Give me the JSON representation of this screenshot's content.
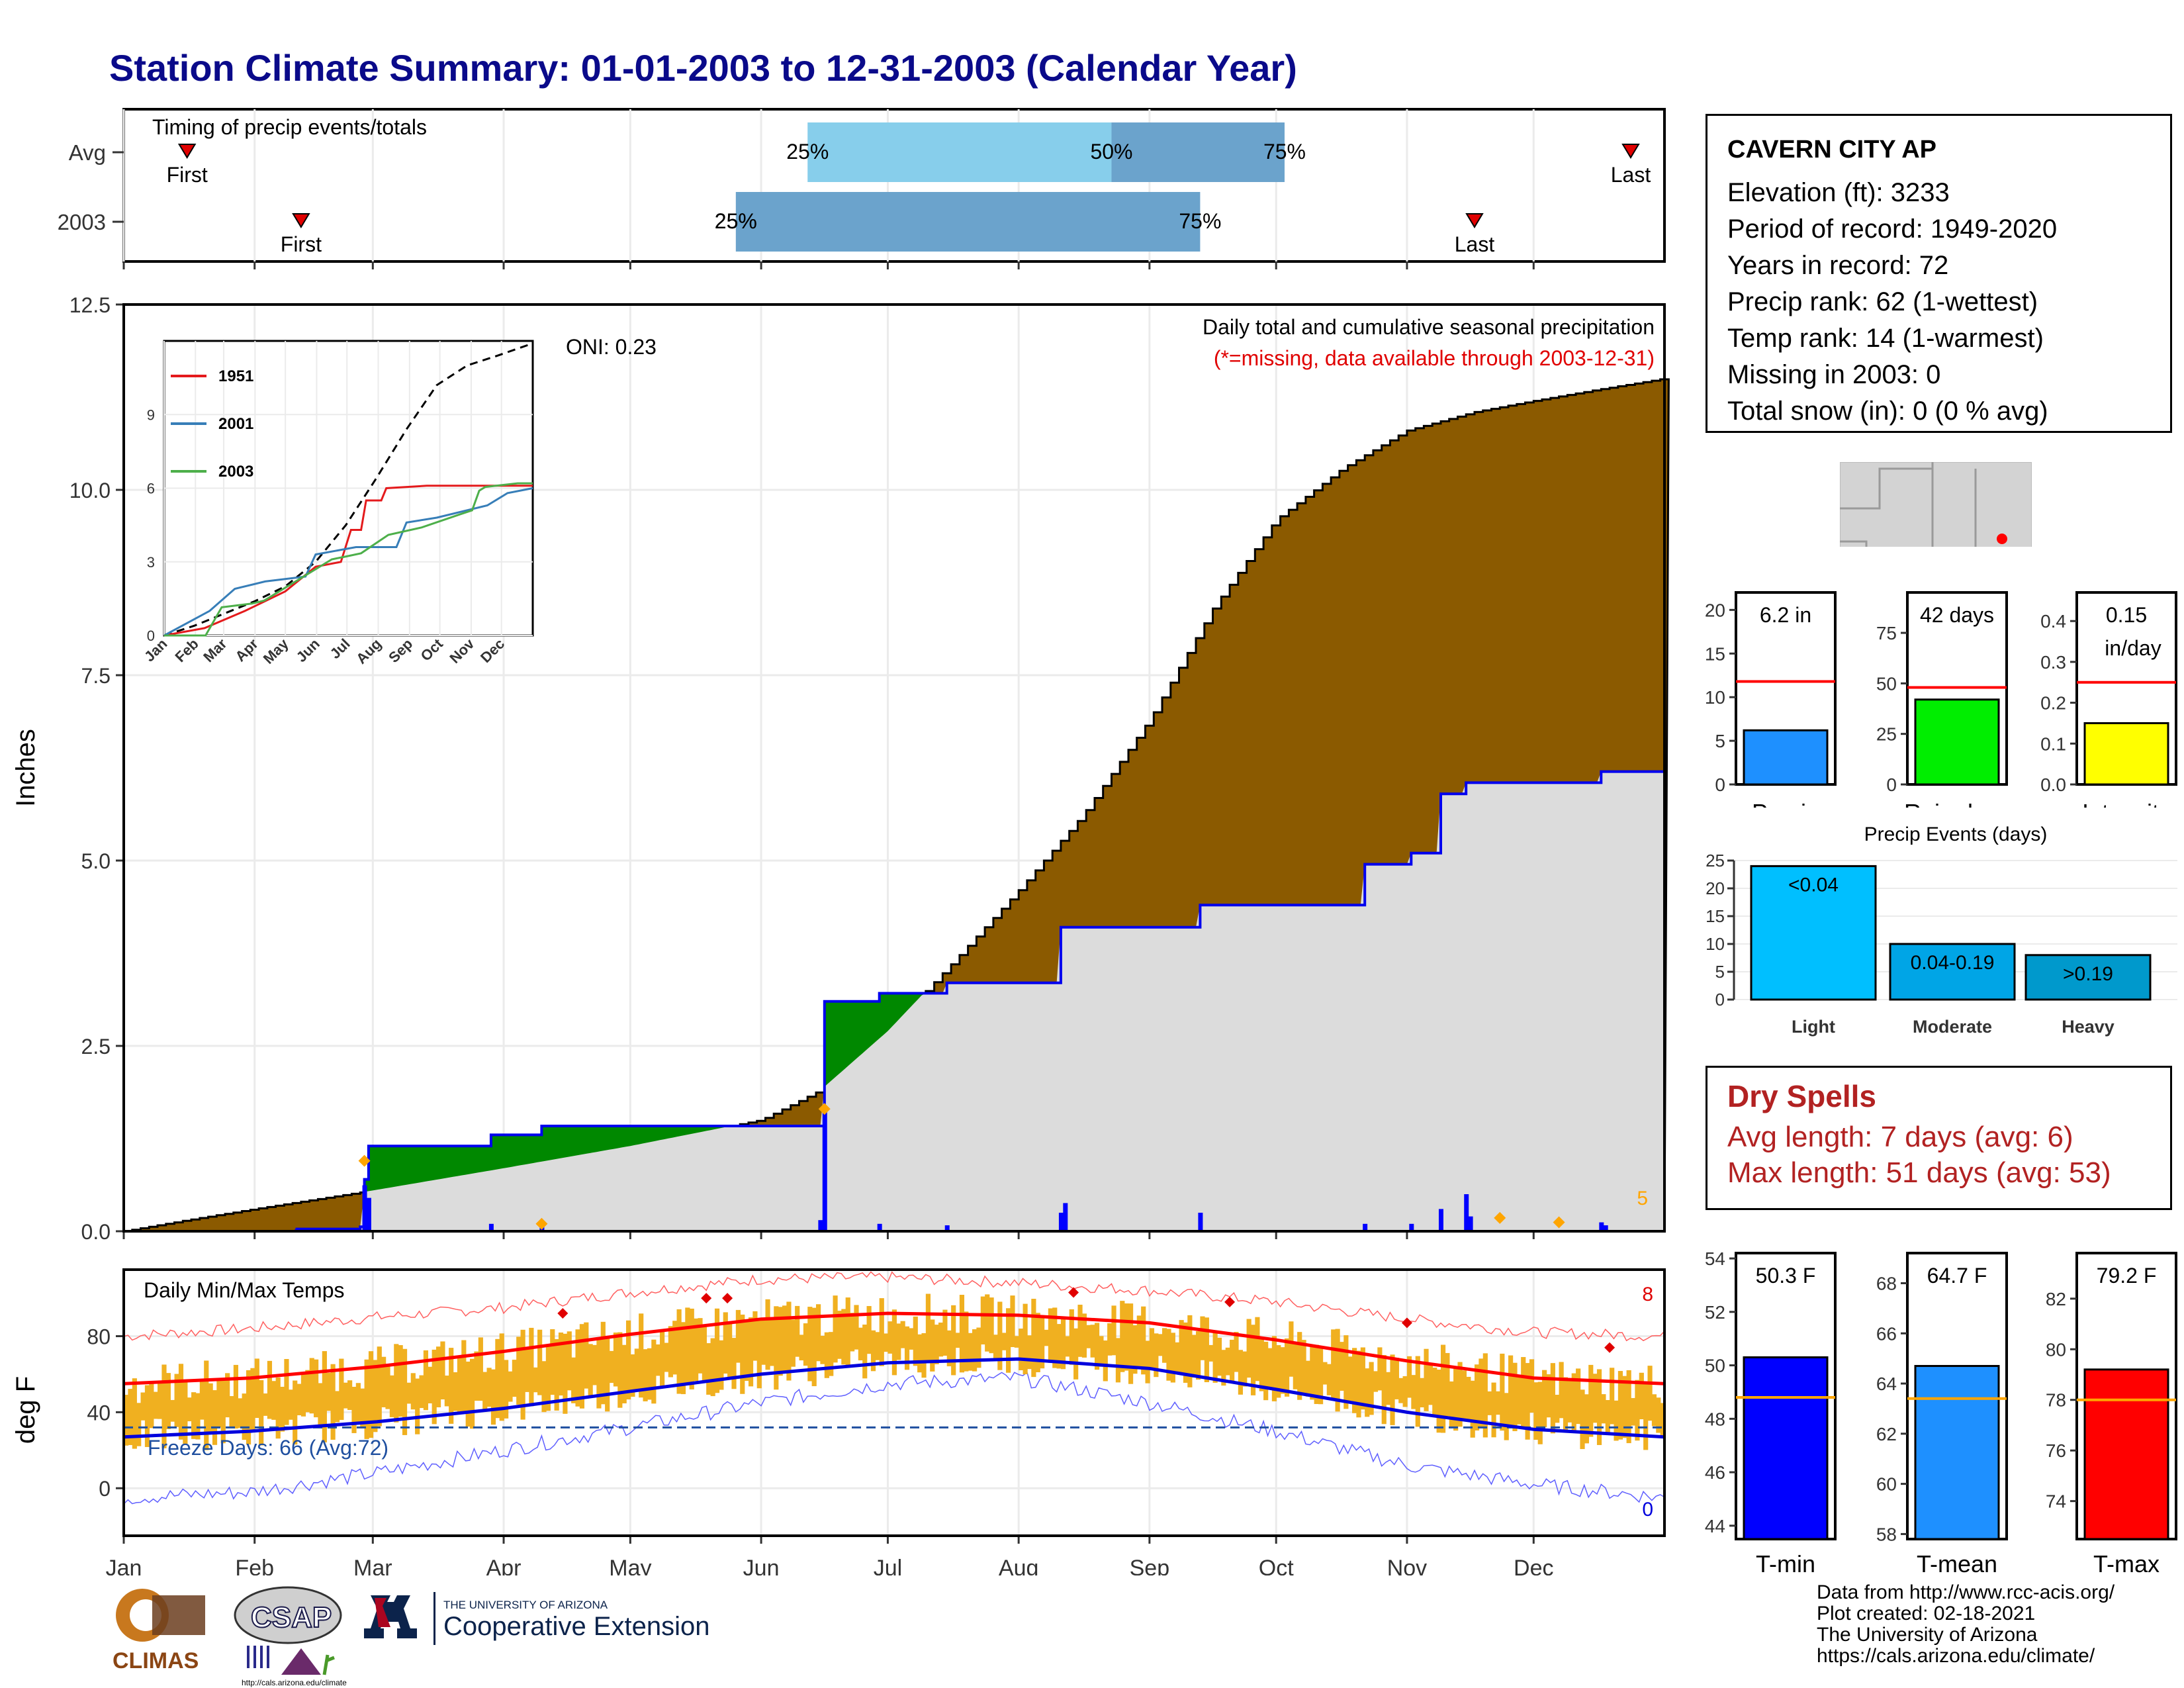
{
  "title": "Station Climate Summary: 01-01-2003 to 12-31-2003 (Calendar Year)",
  "station": {
    "name": "CAVERN CITY AP",
    "lines": [
      "Elevation (ft): 3233",
      "Period of record: 1949-2020",
      "Years in record: 72",
      "Precip rank: 62 (1-wettest)",
      "Temp rank: 14 (1-warmest)",
      "Missing in 2003: 0",
      "Total snow (in): 0 (0 % avg)"
    ]
  },
  "timing": {
    "title": "Timing of precip events/totals",
    "rows": [
      "Avg",
      "2003"
    ],
    "avg": {
      "first_doy": 15,
      "last_doy": 357,
      "p25_doy": 162,
      "p50_doy": 234,
      "p75_doy": 275
    },
    "y2003": {
      "first_doy": 42,
      "last_doy": 320,
      "p25_doy": 145,
      "p50_doy": 145,
      "p75_doy": 255
    },
    "first_label": "First",
    "last_label": "Last",
    "p25_label": "25%",
    "p50_label": "50%",
    "p75_label": "75%",
    "overlap_label": "25%"
  },
  "precip": {
    "ylabel": "Inches",
    "yticks": [
      "0.0",
      "2.5",
      "5.0",
      "7.5",
      "10.0",
      "12.5"
    ],
    "ylim": [
      0,
      12.5
    ],
    "legend_title": "Daily total and cumulative seasonal precipitation",
    "missing_note": "(*=missing, data available through 2003-12-31)",
    "oni": "ONI: 0.23",
    "count_label": "5",
    "avg_cumulative": [
      [
        0,
        0
      ],
      [
        15,
        0.15
      ],
      [
        31,
        0.3
      ],
      [
        59,
        0.55
      ],
      [
        90,
        0.85
      ],
      [
        120,
        1.15
      ],
      [
        151,
        1.5
      ],
      [
        165,
        1.9
      ],
      [
        181,
        2.7
      ],
      [
        196,
        3.6
      ],
      [
        212,
        4.6
      ],
      [
        227,
        5.6
      ],
      [
        243,
        6.9
      ],
      [
        258,
        8.4
      ],
      [
        273,
        9.6
      ],
      [
        289,
        10.3
      ],
      [
        304,
        10.8
      ],
      [
        320,
        11.05
      ],
      [
        334,
        11.2
      ],
      [
        349,
        11.35
      ],
      [
        365,
        11.5
      ]
    ],
    "cum_2003": [
      [
        0,
        0
      ],
      [
        41,
        0
      ],
      [
        41,
        0.03
      ],
      [
        56,
        0.03
      ],
      [
        56,
        0.06
      ],
      [
        57,
        0.06
      ],
      [
        57,
        0.7
      ],
      [
        58,
        0.7
      ],
      [
        58,
        1.15
      ],
      [
        87,
        1.15
      ],
      [
        87,
        1.3
      ],
      [
        99,
        1.3
      ],
      [
        99,
        1.42
      ],
      [
        166,
        1.42
      ],
      [
        166,
        3.1
      ],
      [
        179,
        3.1
      ],
      [
        179,
        3.21
      ],
      [
        195,
        3.21
      ],
      [
        195,
        3.35
      ],
      [
        222,
        3.35
      ],
      [
        222,
        4.1
      ],
      [
        255,
        4.1
      ],
      [
        255,
        4.4
      ],
      [
        294,
        4.4
      ],
      [
        294,
        4.95
      ],
      [
        305,
        4.95
      ],
      [
        305,
        5.1
      ],
      [
        312,
        5.1
      ],
      [
        312,
        5.9
      ],
      [
        318,
        5.9
      ],
      [
        318,
        6.05
      ],
      [
        350,
        6.05
      ],
      [
        350,
        6.2
      ],
      [
        365,
        6.2
      ]
    ],
    "daily_bars": [
      [
        41,
        0.03
      ],
      [
        57,
        0.62
      ],
      [
        58,
        0.45
      ],
      [
        87,
        0.1
      ],
      [
        99,
        0.1
      ],
      [
        165,
        0.15
      ],
      [
        166,
        1.68
      ],
      [
        179,
        0.1
      ],
      [
        195,
        0.08
      ],
      [
        222,
        0.25
      ],
      [
        223,
        0.38
      ],
      [
        255,
        0.25
      ],
      [
        294,
        0.1
      ],
      [
        305,
        0.1
      ],
      [
        312,
        0.3
      ],
      [
        318,
        0.5
      ],
      [
        319,
        0.2
      ],
      [
        350,
        0.12
      ],
      [
        351,
        0.08
      ]
    ],
    "extreme_markers": [
      [
        57,
        0.95
      ],
      [
        99,
        0.1
      ],
      [
        166,
        1.65
      ],
      [
        326,
        0.18
      ],
      [
        340,
        0.12
      ]
    ]
  },
  "inset": {
    "legend": [
      {
        "name": "1951",
        "color": "#e41a1c"
      },
      {
        "name": "2001",
        "color": "#377eb8"
      },
      {
        "name": "2003",
        "color": "#4daf4a"
      }
    ],
    "yticks": [
      "0",
      "3",
      "6",
      "9"
    ],
    "months": [
      "Jan",
      "Feb",
      "Mar",
      "Apr",
      "May",
      "Jun",
      "Jul",
      "Aug",
      "Sep",
      "Oct",
      "Nov",
      "Dec"
    ],
    "avg": [
      [
        0,
        0
      ],
      [
        30,
        0.4
      ],
      [
        60,
        0.9
      ],
      [
        90,
        1.4
      ],
      [
        120,
        2.0
      ],
      [
        150,
        3.0
      ],
      [
        180,
        4.5
      ],
      [
        210,
        6.4
      ],
      [
        240,
        8.4
      ],
      [
        270,
        10.2
      ],
      [
        300,
        11.0
      ],
      [
        330,
        11.4
      ],
      [
        365,
        11.9
      ]
    ],
    "s1951": [
      [
        0,
        0
      ],
      [
        40,
        0.3
      ],
      [
        80,
        1.0
      ],
      [
        120,
        1.8
      ],
      [
        150,
        2.8
      ],
      [
        175,
        3.0
      ],
      [
        185,
        4.3
      ],
      [
        195,
        4.3
      ],
      [
        200,
        5.5
      ],
      [
        215,
        5.5
      ],
      [
        220,
        6.0
      ],
      [
        260,
        6.1
      ],
      [
        300,
        6.1
      ],
      [
        365,
        6.1
      ]
    ],
    "s2001": [
      [
        0,
        0
      ],
      [
        45,
        1.0
      ],
      [
        70,
        1.9
      ],
      [
        100,
        2.2
      ],
      [
        140,
        2.4
      ],
      [
        150,
        3.3
      ],
      [
        190,
        3.6
      ],
      [
        230,
        3.6
      ],
      [
        240,
        4.6
      ],
      [
        270,
        4.8
      ],
      [
        320,
        5.3
      ],
      [
        340,
        5.8
      ],
      [
        365,
        6.0
      ]
    ],
    "s2003": [
      [
        0,
        0
      ],
      [
        41,
        0
      ],
      [
        57,
        1.15
      ],
      [
        87,
        1.3
      ],
      [
        99,
        1.42
      ],
      [
        166,
        3.1
      ],
      [
        179,
        3.21
      ],
      [
        195,
        3.35
      ],
      [
        222,
        4.1
      ],
      [
        255,
        4.4
      ],
      [
        294,
        4.95
      ],
      [
        305,
        5.1
      ],
      [
        312,
        5.9
      ],
      [
        318,
        6.05
      ],
      [
        350,
        6.2
      ],
      [
        365,
        6.2
      ]
    ]
  },
  "temps": {
    "ylabel": "deg F",
    "yticks": [
      "0",
      "40",
      "80"
    ],
    "ylim": [
      -25,
      115
    ],
    "title": "Daily Min/Max Temps",
    "freeze_label": "Freeze Days: 66 (Avg:72)",
    "freeze_line": 32,
    "hot_count": "8",
    "cold_count": "0",
    "avg_max": [
      [
        0,
        55
      ],
      [
        30,
        58
      ],
      [
        60,
        64
      ],
      [
        90,
        72
      ],
      [
        120,
        81
      ],
      [
        151,
        89
      ],
      [
        181,
        92
      ],
      [
        212,
        91
      ],
      [
        243,
        87
      ],
      [
        273,
        78
      ],
      [
        304,
        67
      ],
      [
        334,
        58
      ],
      [
        365,
        55
      ]
    ],
    "avg_min": [
      [
        0,
        27
      ],
      [
        30,
        30
      ],
      [
        60,
        35
      ],
      [
        90,
        42
      ],
      [
        120,
        51
      ],
      [
        151,
        60
      ],
      [
        181,
        66
      ],
      [
        212,
        68
      ],
      [
        243,
        63
      ],
      [
        273,
        52
      ],
      [
        304,
        40
      ],
      [
        334,
        31
      ],
      [
        365,
        27
      ]
    ],
    "rec_max": [
      [
        0,
        80
      ],
      [
        30,
        84
      ],
      [
        60,
        90
      ],
      [
        90,
        95
      ],
      [
        120,
        103
      ],
      [
        151,
        110
      ],
      [
        181,
        111
      ],
      [
        212,
        108
      ],
      [
        243,
        104
      ],
      [
        273,
        98
      ],
      [
        304,
        89
      ],
      [
        334,
        82
      ],
      [
        365,
        80
      ]
    ],
    "rec_min": [
      [
        0,
        -5
      ],
      [
        30,
        -2
      ],
      [
        60,
        8
      ],
      [
        90,
        20
      ],
      [
        120,
        32
      ],
      [
        151,
        45
      ],
      [
        181,
        55
      ],
      [
        212,
        58
      ],
      [
        243,
        45
      ],
      [
        273,
        30
      ],
      [
        304,
        12
      ],
      [
        334,
        2
      ],
      [
        365,
        -5
      ]
    ],
    "hot_markers": [
      [
        104,
        92
      ],
      [
        138,
        100
      ],
      [
        143,
        100
      ],
      [
        225,
        103
      ],
      [
        262,
        98
      ],
      [
        304,
        87
      ],
      [
        352,
        74
      ]
    ]
  },
  "months": [
    "Jan",
    "Feb",
    "Mar",
    "Apr",
    "May",
    "Jun",
    "Jul",
    "Aug",
    "Sep",
    "Oct",
    "Nov",
    "Dec"
  ],
  "bars_precip": {
    "precip": {
      "value": 6.2,
      "label": "6.2 in",
      "avg": 11.8,
      "ylim": [
        0,
        22
      ],
      "yticks": [
        "0",
        "5",
        "10",
        "15",
        "20"
      ],
      "tickvals": [
        0,
        5,
        10,
        15,
        20
      ],
      "color": "#1e90ff",
      "name": "Precip"
    },
    "rain_days": {
      "value": 42,
      "label": "42 days",
      "avg": 48,
      "ylim": [
        0,
        95
      ],
      "yticks": [
        "0",
        "25",
        "50",
        "75"
      ],
      "tickvals": [
        0,
        25,
        50,
        75
      ],
      "color": "#00ee00",
      "name": "Rain days"
    },
    "intensity": {
      "value": 0.15,
      "label": "0.15",
      "label2": "in/day",
      "avg": 0.25,
      "ylim": [
        0,
        0.47
      ],
      "yticks": [
        "0.0",
        "0.1",
        "0.2",
        "0.3",
        "0.4"
      ],
      "tickvals": [
        0,
        0.1,
        0.2,
        0.3,
        0.4
      ],
      "color": "#ffff00",
      "name": "Intensity"
    }
  },
  "events": {
    "title": "Precip Events (days)",
    "yticks": [
      "0",
      "5",
      "10",
      "15",
      "20",
      "25"
    ],
    "ylim": [
      0,
      25
    ],
    "bars": [
      {
        "name": "Light",
        "label": "<0.04",
        "value": 24,
        "color": "#00bfff"
      },
      {
        "name": "Moderate",
        "label": "0.04-0.19",
        "value": 10,
        "color": "#00a5e6"
      },
      {
        "name": "Heavy",
        "label": ">0.19",
        "value": 8,
        "color": "#0099cc"
      }
    ]
  },
  "dry": {
    "title": "Dry Spells",
    "avg_line": "Avg length: 7 days (avg: 6)",
    "max_line": "Max length: 51 days (avg: 53)"
  },
  "bars_temp": {
    "tmin": {
      "value": 50.3,
      "label": "50.3 F",
      "avg": 48.8,
      "ylim": [
        43.5,
        54.2
      ],
      "yticks": [
        "44",
        "46",
        "48",
        "50",
        "52",
        "54"
      ],
      "tickvals": [
        44,
        46,
        48,
        50,
        52,
        54
      ],
      "color": "#0000ff",
      "name": "T-min"
    },
    "tmean": {
      "value": 64.7,
      "label": "64.7 F",
      "avg": 63.4,
      "ylim": [
        57.8,
        69.2
      ],
      "yticks": [
        "58",
        "60",
        "62",
        "64",
        "66",
        "68"
      ],
      "tickvals": [
        58,
        60,
        62,
        64,
        66,
        68
      ],
      "color": "#1e90ff",
      "name": "T-mean"
    },
    "tmax": {
      "value": 79.2,
      "label": "79.2 F",
      "avg": 78.0,
      "ylim": [
        72.5,
        83.8
      ],
      "yticks": [
        "74",
        "76",
        "78",
        "80",
        "82"
      ],
      "tickvals": [
        74,
        76,
        78,
        80,
        82
      ],
      "color": "#ff0000",
      "name": "T-max"
    }
  },
  "logos": {
    "climas": "CLIMAS",
    "csap": "CSAP",
    "csap_url": "http://cals.arizona.edu/climate",
    "ua_line1": "THE UNIVERSITY OF ARIZONA",
    "ua_line2": "Cooperative Extension"
  },
  "footer": [
    "Data from http://www.rcc-acis.org/",
    "Plot created: 02-18-2021",
    "The University of Arizona",
    "https://cals.arizona.edu/climate/"
  ],
  "chart_data": [
    {
      "type": "area",
      "title": "Daily total and cumulative seasonal precipitation",
      "ylabel": "Inches",
      "ylim": [
        0,
        12.5
      ],
      "x": [
        "Jan",
        "Feb",
        "Mar",
        "Apr",
        "May",
        "Jun",
        "Jul",
        "Aug",
        "Sep",
        "Oct",
        "Nov",
        "Dec"
      ],
      "series": [
        {
          "name": "Avg cumulative",
          "values": [
            0.15,
            0.3,
            0.55,
            0.85,
            1.15,
            1.6,
            3.0,
            4.8,
            7.2,
            9.7,
            10.9,
            11.3
          ]
        },
        {
          "name": "2003 cumulative",
          "values": [
            0,
            0.03,
            1.15,
            1.3,
            1.42,
            3.1,
            3.35,
            4.1,
            4.4,
            5.1,
            6.05,
            6.2
          ]
        }
      ]
    },
    {
      "type": "line",
      "title": "Daily Min/Max Temps",
      "ylabel": "deg F",
      "ylim": [
        -25,
        115
      ],
      "x": [
        "Jan",
        "Feb",
        "Mar",
        "Apr",
        "May",
        "Jun",
        "Jul",
        "Aug",
        "Sep",
        "Oct",
        "Nov",
        "Dec"
      ],
      "series": [
        {
          "name": "Avg max",
          "values": [
            55,
            58,
            64,
            72,
            81,
            89,
            92,
            91,
            87,
            78,
            67,
            58
          ]
        },
        {
          "name": "Avg min",
          "values": [
            27,
            30,
            35,
            42,
            51,
            60,
            66,
            68,
            63,
            52,
            40,
            31
          ]
        }
      ]
    },
    {
      "type": "bar",
      "title": "Precip Events (days)",
      "categories": [
        "Light",
        "Moderate",
        "Heavy"
      ],
      "values": [
        24,
        10,
        8
      ]
    },
    {
      "type": "bar",
      "categories": [
        "Precip",
        "Rain days",
        "Intensity"
      ],
      "values": [
        6.2,
        42,
        0.15
      ]
    },
    {
      "type": "bar",
      "categories": [
        "T-min",
        "T-mean",
        "T-max"
      ],
      "values": [
        50.3,
        64.7,
        79.2
      ]
    }
  ]
}
